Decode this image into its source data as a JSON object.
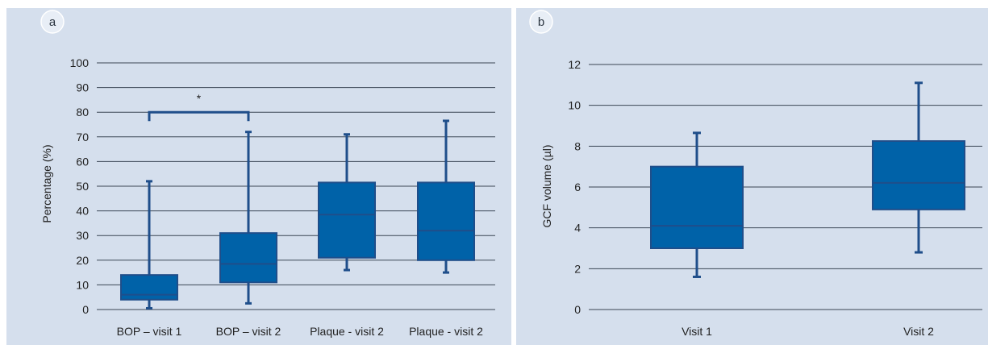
{
  "colors": {
    "panel_background": "#d5dfed",
    "box_fill": "#0062a8",
    "box_stroke": "#1f4e8a",
    "whisker": "#1f4e8a",
    "median": "#1f4e8a",
    "grid": "#3a4654"
  },
  "chart_data": [
    {
      "type": "boxplot",
      "panel_label": "a",
      "title": "",
      "xlabel": "",
      "ylabel": "Percentage (%)",
      "ylim": [
        0,
        100
      ],
      "yticks": [
        0,
        10,
        20,
        30,
        40,
        50,
        60,
        70,
        80,
        90,
        100
      ],
      "grid": true,
      "categories": [
        "BOP – visit 1",
        "BOP – visit 2",
        "Plaque - visit 2",
        "Plaque - visit 2"
      ],
      "boxes": [
        {
          "min": 0.5,
          "q1": 4,
          "median": 6,
          "q3": 14,
          "max": 52
        },
        {
          "min": 2.5,
          "q1": 11,
          "median": 18.5,
          "q3": 31,
          "max": 72
        },
        {
          "min": 16,
          "q1": 21,
          "median": 38.5,
          "q3": 51.5,
          "max": 71
        },
        {
          "min": 15,
          "q1": 20,
          "median": 32,
          "q3": 51.5,
          "max": 76.5
        }
      ],
      "annotations": [
        {
          "type": "significance",
          "from": 0,
          "to": 1,
          "y": 80,
          "text": "*"
        }
      ]
    },
    {
      "type": "boxplot",
      "panel_label": "b",
      "title": "",
      "xlabel": "",
      "ylabel": "GCF volume (µl)",
      "ylim": [
        0,
        12
      ],
      "yticks": [
        0,
        2,
        4,
        6,
        8,
        10,
        12
      ],
      "grid": true,
      "categories": [
        "Visit 1",
        "Visit 2"
      ],
      "boxes": [
        {
          "min": 1.6,
          "q1": 3,
          "median": 4.1,
          "q3": 7,
          "max": 8.65
        },
        {
          "min": 2.8,
          "q1": 4.9,
          "median": 6.2,
          "q3": 8.25,
          "max": 11.1
        }
      ],
      "annotations": []
    }
  ]
}
